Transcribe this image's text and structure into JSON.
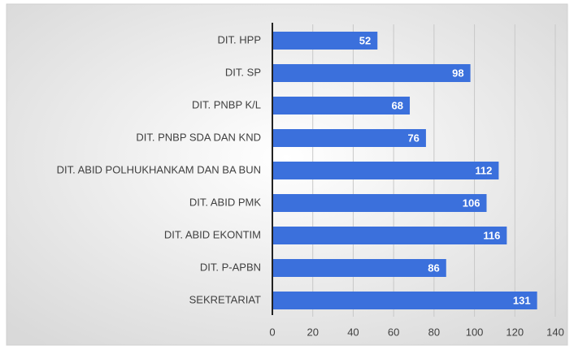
{
  "chart_data": {
    "type": "bar",
    "orientation": "horizontal",
    "categories": [
      "DIT. HPP",
      "DIT. SP",
      "DIT. PNBP K/L",
      "DIT. PNBP SDA DAN KND",
      "DIT. ABID POLHUKHANKAM DAN BA BUN",
      "DIT. ABID PMK",
      "DIT. ABID EKONTIM",
      "DIT. P-APBN",
      "SEKRETARIAT"
    ],
    "values": [
      52,
      98,
      68,
      76,
      112,
      106,
      116,
      86,
      131
    ],
    "color": "#3b70dc",
    "xlim": [
      0,
      140
    ],
    "xticks": [
      0,
      20,
      40,
      60,
      80,
      100,
      120,
      140
    ],
    "grid": true
  }
}
